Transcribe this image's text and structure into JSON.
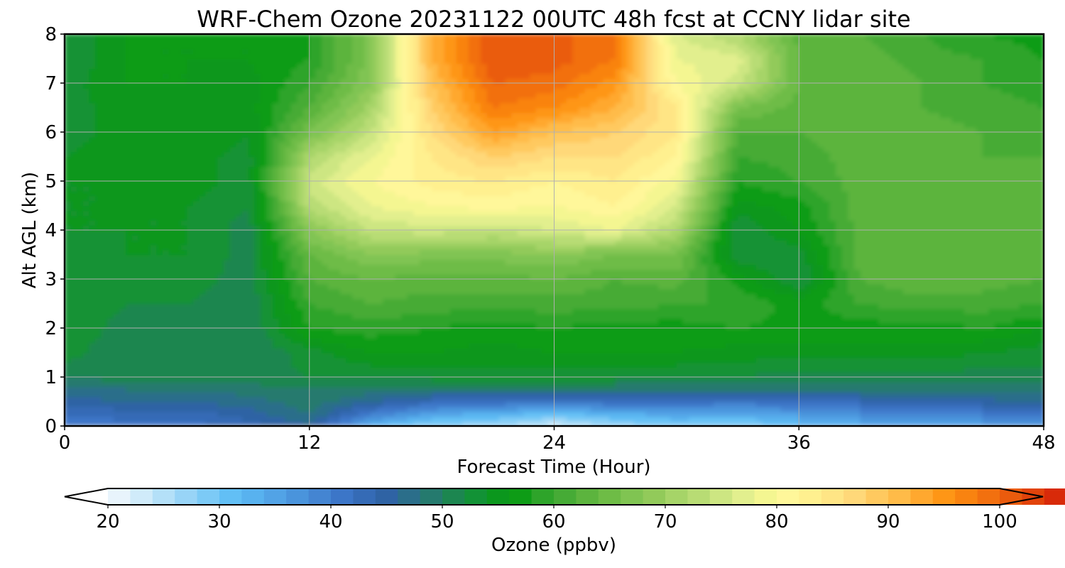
{
  "chart_data": {
    "type": "heatmap",
    "title": "WRF-Chem Ozone  20231122 00UTC 48h fcst at CCNY lidar site",
    "xlabel": "Forecast Time (Hour)",
    "ylabel": "Alt AGL (km)",
    "xlim": [
      0,
      48
    ],
    "ylim": [
      0,
      8
    ],
    "xticks": [
      0,
      12,
      24,
      36,
      48
    ],
    "yticks": [
      0,
      1,
      2,
      3,
      4,
      5,
      6,
      7,
      8
    ],
    "grid": true,
    "x": [
      0,
      3,
      6,
      9,
      12,
      15,
      18,
      21,
      24,
      27,
      30,
      33,
      36,
      39,
      42,
      45,
      48
    ],
    "y": [
      0,
      0.25,
      0.5,
      0.75,
      1,
      1.5,
      2,
      2.5,
      3,
      3.5,
      4,
      4.5,
      5,
      5.5,
      6,
      6.5,
      7,
      7.5,
      8
    ],
    "z": [
      [
        40,
        41,
        41,
        43,
        46,
        32,
        27,
        26,
        22,
        26,
        28,
        27,
        31,
        33,
        34,
        35,
        37
      ],
      [
        42,
        43,
        43,
        45,
        48,
        40,
        35,
        33,
        31,
        33,
        35,
        34,
        36,
        38,
        39,
        40,
        41
      ],
      [
        45,
        46,
        46,
        47,
        49,
        46,
        43,
        42,
        41,
        42,
        42,
        41,
        42,
        43,
        44,
        45,
        46
      ],
      [
        47,
        48,
        48,
        49,
        50,
        49,
        48,
        48,
        48,
        48,
        48,
        48,
        48,
        48,
        49,
        49,
        49
      ],
      [
        50,
        51,
        51,
        51,
        52,
        52,
        53,
        53,
        53,
        53,
        52,
        52,
        51,
        51,
        51,
        51,
        51
      ],
      [
        53,
        50,
        50,
        50,
        53,
        56,
        56,
        55,
        56,
        56,
        56,
        55,
        55,
        55,
        55,
        54,
        53
      ],
      [
        54,
        51,
        51,
        50,
        58,
        59,
        58,
        57,
        58,
        57,
        57,
        58,
        57,
        57,
        57,
        58,
        56
      ],
      [
        54,
        52,
        52,
        50,
        60,
        62,
        61,
        61,
        61,
        61,
        60,
        60,
        57,
        60,
        61,
        61,
        60
      ],
      [
        52,
        53,
        53,
        51,
        62,
        64,
        63,
        63,
        64,
        62,
        63,
        57,
        52,
        62,
        64,
        63,
        62
      ],
      [
        53,
        54,
        54,
        51,
        64,
        68,
        67,
        67,
        68,
        66,
        66,
        52,
        53,
        63,
        64,
        63,
        62
      ],
      [
        54,
        54,
        54,
        51,
        68,
        74,
        75,
        74,
        76,
        78,
        72,
        52,
        56,
        63,
        64,
        63,
        63
      ],
      [
        54,
        54,
        54,
        52,
        73,
        78,
        80,
        81,
        80,
        82,
        76,
        55,
        57,
        63,
        64,
        63,
        63
      ],
      [
        54,
        54,
        55,
        53,
        75,
        80,
        83,
        84,
        82,
        84,
        79,
        58,
        60,
        63,
        64,
        63,
        63
      ],
      [
        54,
        55,
        55,
        53,
        72,
        78,
        84,
        88,
        86,
        86,
        82,
        60,
        61,
        63,
        64,
        62,
        62
      ],
      [
        53,
        55,
        56,
        54,
        66,
        74,
        86,
        94,
        90,
        88,
        84,
        62,
        62,
        63,
        63,
        62,
        61
      ],
      [
        53,
        55,
        56,
        55,
        62,
        71,
        88,
        98,
        96,
        92,
        84,
        66,
        63,
        64,
        62,
        61,
        60
      ],
      [
        53,
        56,
        56,
        55,
        60,
        68,
        90,
        100,
        99,
        95,
        80,
        75,
        64,
        64,
        62,
        60,
        59
      ],
      [
        52,
        56,
        56,
        56,
        58,
        67,
        92,
        102,
        101,
        98,
        78,
        77,
        64,
        63,
        61,
        60,
        58
      ],
      [
        52,
        56,
        56,
        56,
        58,
        67,
        92,
        102,
        101,
        98,
        76,
        72,
        63,
        62,
        60,
        58,
        57
      ]
    ],
    "colorbar": {
      "label": "Ozone  (ppbv)",
      "min": 20,
      "max": 100,
      "step": 2,
      "ticks": [
        20,
        30,
        40,
        50,
        60,
        70,
        80,
        90,
        100
      ],
      "extend": "both",
      "colors": [
        "#ffffff",
        "#e8f4fc",
        "#d0ebfa",
        "#b4e0f8",
        "#98d4f7",
        "#7ccaf6",
        "#62bff5",
        "#58b2ef",
        "#52a3e6",
        "#4a94dc",
        "#4485d2",
        "#3c76c8",
        "#356bb6",
        "#2f63a4",
        "#2b6e8a",
        "#257a6e",
        "#1c8650",
        "#129236",
        "#0b971d",
        "#0e9c16",
        "#2ea42a",
        "#46ab36",
        "#5cb43e",
        "#6ebc46",
        "#80c452",
        "#92ca5a",
        "#a6d468",
        "#b8dc74",
        "#cde682",
        "#e2ef8e",
        "#f4f691",
        "#fff79a",
        "#fff08f",
        "#ffe585",
        "#ffd879",
        "#ffc95f",
        "#ffbb48",
        "#ffa82f",
        "#fe9616",
        "#f98310",
        "#f2700f",
        "#ea5b0d",
        "#e2430b",
        "#d82a09",
        "#cd1209",
        "#bd0606",
        "#a90303",
        "#930000",
        "#7e0000",
        "#690000",
        "#540000",
        "#3e0000",
        "#2c0000",
        "#1c0000",
        "#0d0000",
        "#000000"
      ]
    }
  }
}
